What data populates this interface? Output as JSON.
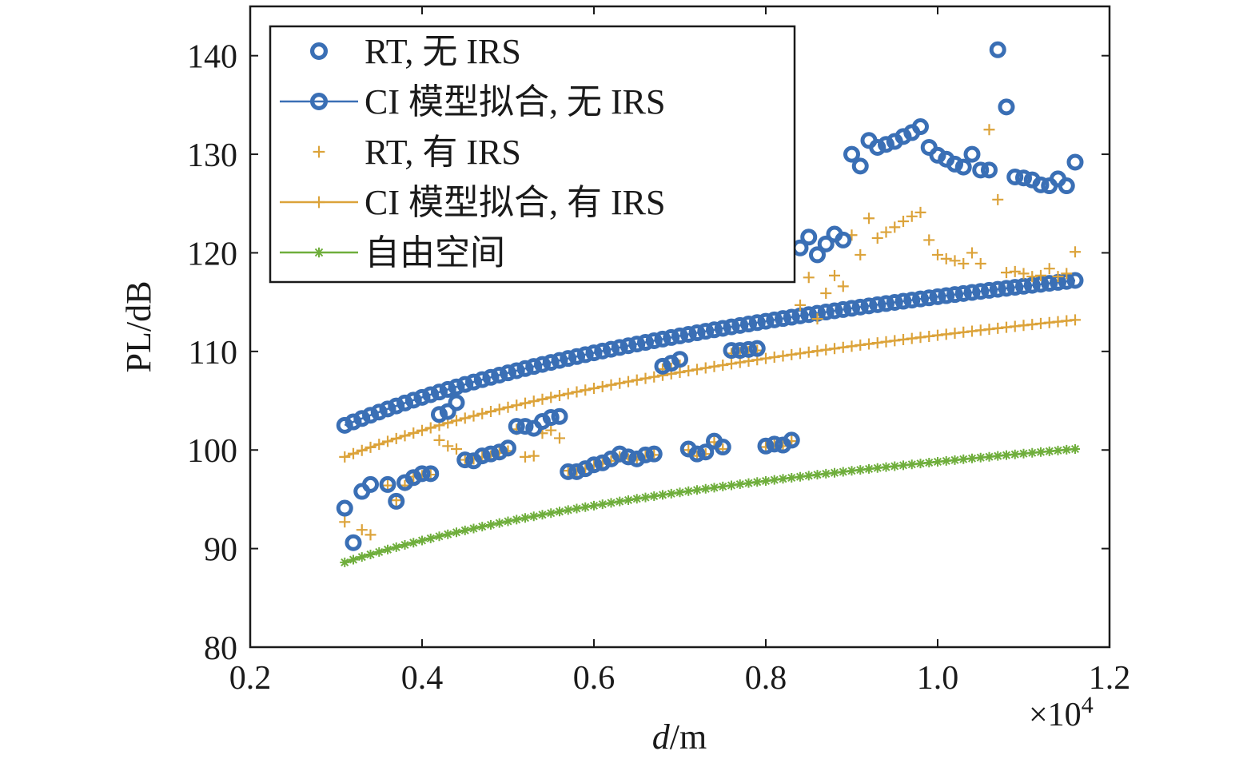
{
  "chart_data": {
    "type": "scatter",
    "xlabel_italic": "d",
    "xlabel_unit": "/m",
    "ylabel": "PL/dB",
    "x_multiplier_base": "×10",
    "x_multiplier_exp": "4",
    "xlim": [
      0.2,
      1.2
    ],
    "ylim": [
      80,
      145
    ],
    "x_ticks": [
      0.2,
      0.4,
      0.6,
      0.8,
      1.0,
      1.2
    ],
    "x_tick_labels": [
      "0.2",
      "0.4",
      "0.6",
      "0.8",
      "1.0",
      "1.2"
    ],
    "y_ticks": [
      80,
      90,
      100,
      110,
      120,
      130,
      140
    ],
    "y_tick_labels": [
      "80",
      "90",
      "100",
      "110",
      "120",
      "130",
      "140"
    ],
    "grid": false,
    "legend_position": "top-left",
    "colors": {
      "blue": "#3a6fb5",
      "orange": "#dca33a",
      "green": "#6fae3c"
    },
    "series": [
      {
        "name": "RT, 无 IRS",
        "marker": "circle",
        "line": false,
        "color": "#3a6fb5",
        "x": [
          0.31,
          0.32,
          0.33,
          0.34,
          0.36,
          0.37,
          0.38,
          0.39,
          0.4,
          0.41,
          0.42,
          0.43,
          0.44,
          0.45,
          0.46,
          0.47,
          0.48,
          0.49,
          0.5,
          0.51,
          0.52,
          0.53,
          0.54,
          0.55,
          0.56,
          0.57,
          0.58,
          0.59,
          0.6,
          0.61,
          0.62,
          0.63,
          0.64,
          0.65,
          0.66,
          0.67,
          0.68,
          0.69,
          0.7,
          0.71,
          0.72,
          0.73,
          0.74,
          0.75,
          0.76,
          0.77,
          0.78,
          0.79,
          0.8,
          0.81,
          0.82,
          0.83,
          0.84,
          0.85,
          0.86,
          0.87,
          0.88,
          0.89,
          0.9,
          0.91,
          0.92,
          0.93,
          0.94,
          0.95,
          0.96,
          0.97,
          0.98,
          0.99,
          1.0,
          1.01,
          1.02,
          1.03,
          1.04,
          1.05,
          1.06,
          1.07,
          1.08,
          1.09,
          1.1,
          1.11,
          1.12,
          1.13,
          1.14,
          1.15,
          1.16
        ],
        "y": [
          94.1,
          90.6,
          95.8,
          96.5,
          96.5,
          94.8,
          96.7,
          97.2,
          97.6,
          97.6,
          103.6,
          103.9,
          104.8,
          99.0,
          98.9,
          99.4,
          99.6,
          99.8,
          100.2,
          102.4,
          102.4,
          102.2,
          102.9,
          103.3,
          103.4,
          97.8,
          97.8,
          98.1,
          98.5,
          98.7,
          99.1,
          99.6,
          99.3,
          99.1,
          99.5,
          99.6,
          108.5,
          108.8,
          109.2,
          100.1,
          99.6,
          99.8,
          100.9,
          100.3,
          110.1,
          110.1,
          110.2,
          110.3,
          100.4,
          100.6,
          100.5,
          101.0,
          120.5,
          121.6,
          119.8,
          120.9,
          121.9,
          121.3,
          130.0,
          128.8,
          131.4,
          130.7,
          131.0,
          131.3,
          131.8,
          132.2,
          132.8,
          130.7,
          129.9,
          129.5,
          129.0,
          128.7,
          130.0,
          128.4,
          128.4,
          140.6,
          134.8,
          127.7,
          127.6,
          127.4,
          126.9,
          126.8,
          127.5,
          126.8,
          129.2
        ]
      },
      {
        "name": "CI 模型拟合, 无 IRS",
        "marker": "circle",
        "line": true,
        "color": "#3a6fb5",
        "model": {
          "x0": 0.31,
          "x1": 1.16,
          "y0": 102.5,
          "y1": 117.2,
          "step": 0.01
        }
      },
      {
        "name": "RT, 有 IRS",
        "marker": "plus",
        "line": false,
        "color": "#dca33a",
        "x": [
          0.31,
          0.33,
          0.34,
          0.36,
          0.37,
          0.38,
          0.39,
          0.4,
          0.41,
          0.42,
          0.43,
          0.44,
          0.45,
          0.46,
          0.47,
          0.48,
          0.49,
          0.5,
          0.51,
          0.52,
          0.53,
          0.54,
          0.55,
          0.56,
          0.57,
          0.58,
          0.59,
          0.6,
          0.61,
          0.62,
          0.63,
          0.64,
          0.65,
          0.66,
          0.67,
          0.68,
          0.69,
          0.7,
          0.71,
          0.72,
          0.73,
          0.74,
          0.75,
          0.76,
          0.77,
          0.78,
          0.79,
          0.8,
          0.81,
          0.82,
          0.83,
          0.84,
          0.85,
          0.86,
          0.87,
          0.88,
          0.89,
          0.9,
          0.91,
          0.92,
          0.93,
          0.94,
          0.95,
          0.96,
          0.97,
          0.98,
          0.99,
          1.0,
          1.01,
          1.02,
          1.03,
          1.04,
          1.05,
          1.06,
          1.07,
          1.08,
          1.09,
          1.1,
          1.11,
          1.12,
          1.13,
          1.14,
          1.15,
          1.16
        ],
        "y": [
          92.7,
          91.9,
          91.4,
          96.4,
          94.9,
          96.4,
          97.3,
          97.4,
          97.5,
          101.0,
          100.4,
          100.1,
          99.0,
          99.1,
          99.3,
          99.4,
          99.7,
          99.9,
          102.1,
          99.3,
          99.4,
          101.7,
          102.0,
          101.2,
          97.9,
          97.9,
          98.1,
          98.4,
          98.6,
          98.9,
          99.3,
          99.1,
          99.0,
          99.4,
          99.5,
          108.2,
          108.3,
          108.6,
          100.0,
          99.4,
          99.6,
          100.8,
          100.1,
          109.8,
          109.9,
          110.0,
          110.1,
          100.3,
          100.5,
          100.4,
          100.9,
          114.7,
          117.5,
          113.3,
          115.9,
          117.7,
          116.6,
          121.8,
          119.8,
          123.5,
          121.5,
          122.1,
          122.6,
          123.2,
          123.7,
          124.1,
          121.3,
          119.8,
          119.4,
          119.2,
          118.9,
          120.0,
          118.9,
          132.5,
          125.4,
          118.0,
          118.1,
          117.9,
          117.6,
          117.7,
          118.4,
          117.6,
          117.9,
          120.1
        ]
      },
      {
        "name": "CI 模型拟合, 有 IRS",
        "marker": "plus",
        "line": true,
        "color": "#dca33a",
        "model": {
          "x0": 0.31,
          "x1": 1.16,
          "y0": 99.3,
          "y1": 113.2,
          "step": 0.01
        }
      },
      {
        "name": "自由空间",
        "marker": "star",
        "line": true,
        "color": "#6fae3c",
        "model": {
          "x0": 0.31,
          "x1": 1.16,
          "y0": 88.6,
          "y1": 100.1,
          "step": 0.01
        }
      }
    ]
  }
}
